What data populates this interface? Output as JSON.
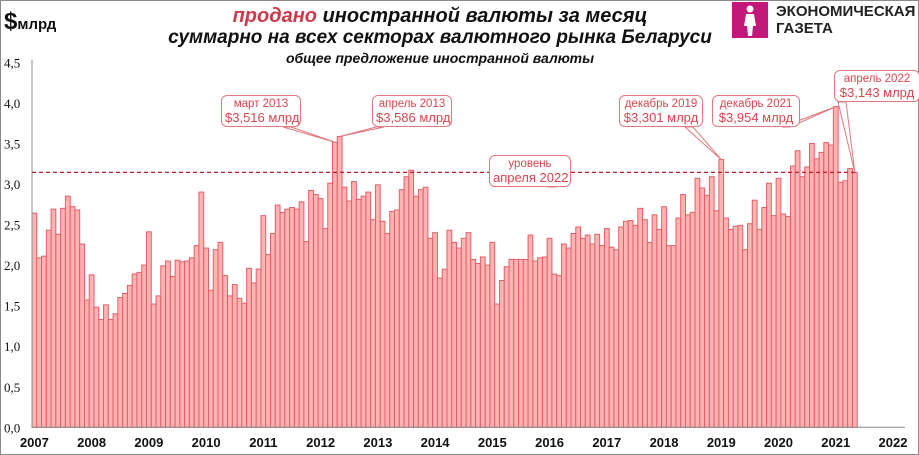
{
  "header": {
    "unit_symbol": "$",
    "unit_text": "млрд",
    "title_red": "продано",
    "title_rest": "иностранной валюты за месяц",
    "subtitle": "суммарно на всех секторах валютного рынка Беларуси",
    "subtitle2": "общее предложение иностранной валюты"
  },
  "logo": {
    "line1": "ЭКОНОМИЧЕСКАЯ",
    "line2": "ГАЗЕТА",
    "color": "#c2187a"
  },
  "chart_data": {
    "type": "bar",
    "title": "продано иностранной валюты за месяц",
    "ylabel": "$млрд",
    "ylim": [
      0,
      4.5
    ],
    "yticks": [
      "0,0",
      "0,5",
      "1,0",
      "1,5",
      "2,0",
      "2,5",
      "3,0",
      "3,5",
      "4,0",
      "4,5"
    ],
    "xticks": [
      "2007",
      "2008",
      "2009",
      "2010",
      "2011",
      "2012",
      "2013",
      "2014",
      "2015",
      "2016",
      "2017",
      "2018",
      "2019",
      "2020",
      "2021",
      "2022"
    ],
    "grid": false,
    "bar_color": "#ffb3b3",
    "bar_edge_color": "#e06068",
    "values": [
      2.64,
      2.09,
      2.11,
      2.43,
      2.69,
      2.38,
      2.7,
      2.85,
      2.72,
      2.68,
      2.26,
      1.57,
      1.88,
      1.48,
      1.33,
      1.51,
      1.33,
      1.4,
      1.6,
      1.65,
      1.75,
      1.89,
      1.91,
      2.0,
      2.41,
      1.52,
      1.62,
      1.99,
      2.05,
      1.86,
      2.06,
      2.04,
      2.05,
      2.09,
      2.24,
      2.9,
      2.21,
      1.69,
      2.19,
      2.28,
      1.87,
      1.62,
      1.76,
      1.59,
      1.53,
      1.96,
      1.78,
      1.95,
      2.61,
      2.13,
      2.39,
      2.74,
      2.65,
      2.69,
      2.71,
      2.69,
      2.78,
      2.29,
      2.92,
      2.87,
      2.82,
      2.45,
      3.01,
      3.516,
      3.586,
      2.96,
      2.79,
      3.03,
      2.81,
      2.85,
      2.9,
      2.56,
      2.99,
      2.54,
      2.39,
      2.66,
      2.68,
      2.93,
      3.09,
      3.17,
      2.85,
      2.93,
      2.96,
      2.33,
      2.4,
      1.84,
      1.95,
      2.43,
      2.28,
      2.21,
      2.33,
      2.4,
      2.07,
      2.02,
      2.1,
      2.0,
      2.28,
      1.52,
      1.81,
      1.98,
      2.07,
      2.07,
      2.07,
      2.07,
      2.37,
      2.05,
      2.09,
      2.1,
      2.33,
      1.89,
      1.87,
      2.26,
      2.21,
      2.39,
      2.47,
      2.33,
      2.37,
      2.26,
      2.38,
      2.24,
      2.45,
      2.22,
      2.19,
      2.47,
      2.54,
      2.55,
      2.49,
      2.7,
      2.56,
      2.28,
      2.62,
      2.44,
      2.72,
      2.24,
      2.24,
      2.58,
      2.87,
      2.62,
      2.65,
      3.07,
      2.95,
      2.86,
      3.09,
      2.67,
      3.301,
      2.58,
      2.44,
      2.48,
      2.49,
      2.19,
      2.51,
      2.8,
      2.44,
      2.71,
      3.01,
      2.61,
      3.07,
      2.63,
      2.6,
      3.22,
      3.41,
      3.09,
      3.21,
      3.5,
      3.31,
      3.39,
      3.51,
      3.48,
      3.954,
      3.02,
      3.04,
      3.19,
      3.143
    ],
    "reference_line": {
      "value": 3.143,
      "color": "#c0202a",
      "style": "dashed"
    },
    "annotations": [
      {
        "label": "март 2013",
        "value_text": "$3,516 млрд"
      },
      {
        "label": "апрель 2013",
        "value_text": "$3,586 млрд"
      },
      {
        "label": "уровень",
        "value_text": "апреля 2022"
      },
      {
        "label": "декабрь 2019",
        "value_text": "$3,301 млрд"
      },
      {
        "label": "декабрь 2021",
        "value_text": "$3,954 млрд"
      },
      {
        "label": "апрель 2022",
        "value_text": "$3,143 млрд"
      }
    ]
  }
}
